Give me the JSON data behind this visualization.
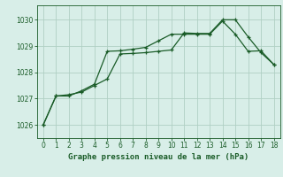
{
  "title": "Graphe pression niveau de la mer (hPa)",
  "background_color": "#d8eee8",
  "grid_color": "#b0d0c4",
  "line_color": "#1a5c28",
  "xlim": [
    -0.5,
    18.5
  ],
  "ylim": [
    1025.5,
    1030.55
  ],
  "yticks": [
    1026,
    1027,
    1028,
    1029,
    1030
  ],
  "xticks": [
    0,
    1,
    2,
    3,
    4,
    5,
    6,
    7,
    8,
    9,
    10,
    11,
    12,
    13,
    14,
    15,
    16,
    17,
    18
  ],
  "series1_x": [
    0,
    1,
    2,
    3,
    4,
    5,
    6,
    7,
    8,
    9,
    10,
    11,
    12,
    13,
    14,
    15,
    16,
    17,
    18
  ],
  "series1_y": [
    1026.0,
    1027.1,
    1027.15,
    1027.25,
    1027.5,
    1027.75,
    1028.7,
    1028.72,
    1028.75,
    1028.8,
    1028.85,
    1029.5,
    1029.48,
    1029.48,
    1030.0,
    1030.0,
    1029.35,
    1028.75,
    1028.3
  ],
  "series2_x": [
    0,
    1,
    2,
    3,
    4,
    5,
    6,
    7,
    8,
    9,
    10,
    11,
    12,
    13,
    14,
    15,
    16,
    17,
    18
  ],
  "series2_y": [
    1026.0,
    1027.1,
    1027.1,
    1027.3,
    1027.55,
    1028.8,
    1028.82,
    1028.88,
    1028.95,
    1029.2,
    1029.45,
    1029.45,
    1029.45,
    1029.45,
    1029.95,
    1029.45,
    1028.8,
    1028.82,
    1028.3
  ]
}
